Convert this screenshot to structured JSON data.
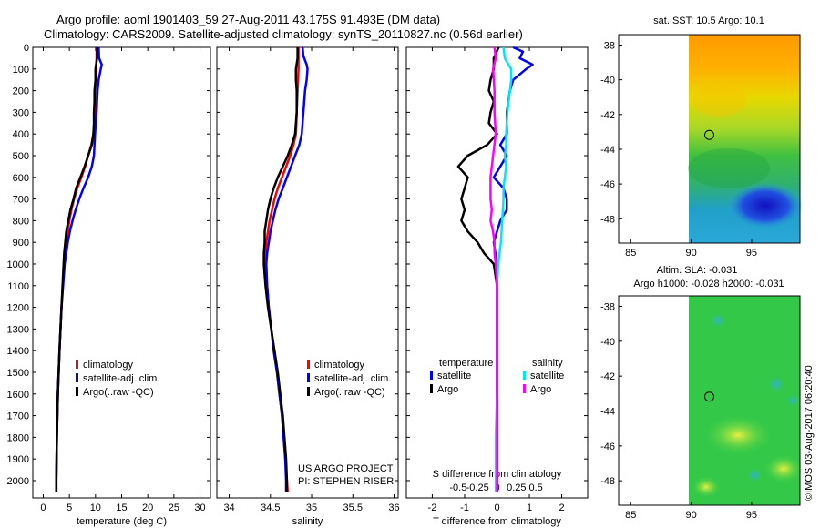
{
  "titles": {
    "line1": "Argo profile: aoml 1901403_59 27-Aug-2011 43.175S 91.493E (DM data)",
    "line2": "Climatology: CARS2009. Satellite-adjusted climatology: synTS_20110827.nc (0.56d earlier)"
  },
  "colors": {
    "climatology": "#ff0000",
    "satellite_adj": "#0000ff",
    "argo": "#000000",
    "sat_salinity": "#00e5ff",
    "argo_salinity": "#ff00ff"
  },
  "chart_data": [
    {
      "type": "line",
      "name": "temperature-profile",
      "xlabel": "temperature (deg C)",
      "ylabel": "",
      "xlim": [
        -2,
        32
      ],
      "ylim": [
        2080,
        0
      ],
      "xticks": [
        "0",
        "5",
        "10",
        "15",
        "20",
        "25",
        "30"
      ],
      "yticks": [
        "0",
        "100",
        "200",
        "300",
        "400",
        "500",
        "600",
        "700",
        "800",
        "900",
        "1000",
        "1100",
        "1200",
        "1300",
        "1400",
        "1500",
        "1600",
        "1700",
        "1800",
        "1900",
        "2000"
      ],
      "legend": [
        "climatology",
        "satellite-adj. clim.",
        "Argo(..raw -QC)"
      ],
      "series": [
        {
          "name": "climatology",
          "depth": [
            0,
            50,
            100,
            200,
            300,
            400,
            450,
            500,
            550,
            600,
            650,
            700,
            750,
            800,
            850,
            900,
            1000,
            1200,
            1400,
            1600,
            1800,
            2000,
            2050
          ],
          "values": [
            10.2,
            10.2,
            10.1,
            10.0,
            9.9,
            9.6,
            9.2,
            8.6,
            8.0,
            7.3,
            6.5,
            5.9,
            5.4,
            5.0,
            4.7,
            4.4,
            4.0,
            3.5,
            3.1,
            2.8,
            2.6,
            2.5,
            2.5
          ]
        },
        {
          "name": "satellite-adj. clim.",
          "depth": [
            0,
            50,
            80,
            100,
            150,
            200,
            300,
            400,
            450,
            500,
            550,
            600,
            650,
            700,
            750,
            800,
            850,
            900,
            1000,
            1200,
            1400,
            1600,
            1800,
            2000,
            2050
          ],
          "values": [
            10.6,
            10.7,
            11.2,
            11.0,
            10.6,
            10.4,
            10.2,
            9.9,
            9.8,
            9.7,
            9.3,
            8.6,
            7.7,
            6.9,
            6.2,
            5.6,
            5.1,
            4.7,
            4.1,
            3.5,
            3.1,
            2.8,
            2.6,
            2.5,
            2.5
          ]
        },
        {
          "name": "Argo(..raw -QC)",
          "depth": [
            0,
            50,
            100,
            150,
            200,
            250,
            300,
            350,
            400,
            450,
            500,
            550,
            600,
            650,
            700,
            750,
            800,
            850,
            900,
            950,
            1000,
            1200,
            1400,
            1600,
            1800,
            2000,
            2050
          ],
          "values": [
            10.3,
            10.3,
            10.0,
            10.0,
            9.8,
            9.8,
            9.7,
            9.7,
            9.6,
            9.3,
            8.6,
            7.9,
            7.1,
            6.3,
            5.8,
            5.2,
            4.8,
            4.4,
            4.2,
            4.0,
            3.9,
            3.5,
            3.1,
            2.8,
            2.6,
            2.5,
            2.5
          ]
        }
      ],
      "annotations": []
    },
    {
      "type": "line",
      "name": "salinity-profile",
      "xlabel": "salinity",
      "xlim": [
        33.85,
        36.05
      ],
      "ylim": [
        2080,
        0
      ],
      "xticks": [
        "34",
        "34.5",
        "35",
        "35.5",
        "36"
      ],
      "legend": [
        "climatology",
        "satellite-adj. clim.",
        "Argo(..raw -QC)"
      ],
      "series": [
        {
          "name": "climatology",
          "depth": [
            0,
            50,
            100,
            200,
            300,
            400,
            450,
            500,
            550,
            600,
            650,
            700,
            750,
            800,
            850,
            900,
            950,
            1000,
            1100,
            1200,
            1300,
            1400,
            1500,
            1600,
            1700,
            1800,
            1900,
            2000,
            2050
          ],
          "values": [
            34.84,
            34.84,
            34.84,
            34.83,
            34.82,
            34.81,
            34.78,
            34.74,
            34.69,
            34.64,
            34.59,
            34.55,
            34.52,
            34.49,
            34.47,
            34.45,
            34.44,
            34.44,
            34.46,
            34.48,
            34.51,
            34.54,
            34.58,
            34.61,
            34.64,
            34.66,
            34.68,
            34.7,
            34.71
          ]
        },
        {
          "name": "satellite-adj. clim.",
          "depth": [
            0,
            40,
            60,
            80,
            100,
            150,
            200,
            300,
            400,
            450,
            500,
            550,
            600,
            650,
            700,
            750,
            800,
            850,
            900,
            950,
            1000,
            1100,
            1200,
            1300,
            1400,
            1500,
            1600,
            1700,
            1800,
            1900,
            2000,
            2050
          ],
          "values": [
            34.89,
            34.9,
            34.92,
            34.94,
            34.95,
            34.94,
            34.92,
            34.9,
            34.88,
            34.85,
            34.8,
            34.75,
            34.7,
            34.65,
            34.6,
            34.56,
            34.53,
            34.5,
            34.48,
            34.46,
            34.45,
            34.46,
            34.48,
            34.51,
            34.54,
            34.58,
            34.61,
            34.64,
            34.66,
            34.68,
            34.69,
            34.69
          ]
        },
        {
          "name": "Argo(..raw -QC)",
          "depth": [
            0,
            50,
            100,
            150,
            200,
            250,
            300,
            350,
            400,
            450,
            500,
            550,
            600,
            650,
            700,
            750,
            800,
            850,
            900,
            950,
            1000,
            1100,
            1200,
            1300,
            1400,
            1500,
            1600,
            1700,
            1800,
            1900,
            2000,
            2050
          ],
          "values": [
            34.83,
            34.83,
            34.81,
            34.81,
            34.82,
            34.82,
            34.82,
            34.81,
            34.8,
            34.76,
            34.71,
            34.65,
            34.59,
            34.54,
            34.5,
            34.47,
            34.45,
            34.43,
            34.43,
            34.42,
            34.42,
            34.44,
            34.47,
            34.51,
            34.55,
            34.59,
            34.62,
            34.65,
            34.67,
            34.69,
            34.7,
            34.7
          ]
        }
      ],
      "annotations": [
        "US ARGO PROJECT",
        "PI: STEPHEN RISER"
      ]
    },
    {
      "type": "line",
      "name": "difference-profile",
      "xlabel": "T difference from climatology",
      "xlabel_top": "S difference from climatology",
      "xlim": [
        -2.8,
        2.8
      ],
      "ylim": [
        2080,
        0
      ],
      "xticks": [
        "-2",
        "-1",
        "0",
        "1",
        "2"
      ],
      "xticks_top": [
        "-0.5",
        "-0.25",
        "0",
        "0.25",
        "0.5"
      ],
      "legend_headers": [
        "temperature",
        "salinity"
      ],
      "legend": [
        "satellite",
        "Argo",
        "satellite",
        "Argo"
      ],
      "series": [
        {
          "name": "temperature satellite",
          "depth": [
            0,
            20,
            50,
            80,
            100,
            150,
            200,
            300,
            400,
            450,
            500,
            550,
            600,
            650,
            700,
            750,
            800,
            850,
            900,
            1000,
            1100,
            1200,
            1400,
            1600,
            1800,
            2000,
            2050
          ],
          "values": [
            0.5,
            0.8,
            0.7,
            1.1,
            0.9,
            0.5,
            0.4,
            0.3,
            0.3,
            0.1,
            0.3,
            0.1,
            -0.1,
            0.2,
            0.3,
            0.3,
            0.1,
            0.0,
            -0.1,
            0.0,
            0.0,
            0.0,
            0.0,
            0.0,
            0.0,
            0.0,
            0.0
          ]
        },
        {
          "name": "temperature Argo",
          "depth": [
            0,
            50,
            100,
            150,
            200,
            250,
            300,
            350,
            400,
            450,
            500,
            550,
            600,
            650,
            700,
            750,
            800,
            850,
            900,
            950,
            1000,
            1100,
            1200,
            1400,
            1600,
            1800,
            2000,
            2050
          ],
          "values": [
            0.05,
            -0.1,
            -0.1,
            -0.2,
            -0.25,
            -0.1,
            -0.2,
            -0.25,
            0.0,
            -0.3,
            -0.9,
            -1.2,
            -0.9,
            -1.0,
            -1.1,
            -1.0,
            -1.1,
            -0.9,
            -0.6,
            -0.4,
            -0.1,
            0.0,
            0.0,
            0.0,
            0.0,
            0.0,
            0.0,
            0.0
          ]
        },
        {
          "name": "salinity satellite",
          "depth": [
            0,
            50,
            100,
            150,
            200,
            300,
            400,
            450,
            500,
            550,
            600,
            650,
            700,
            800,
            900,
            1000,
            1100,
            1200,
            1400,
            1600,
            1800,
            2000,
            2050
          ],
          "values": [
            0.05,
            0.06,
            0.11,
            0.11,
            0.1,
            0.08,
            0.07,
            0.07,
            0.06,
            0.07,
            0.06,
            0.05,
            0.05,
            0.04,
            0.03,
            0.01,
            0.0,
            0.0,
            0.0,
            0.0,
            -0.01,
            -0.01,
            -0.01
          ]
        },
        {
          "name": "salinity Argo",
          "depth": [
            0,
            50,
            100,
            200,
            300,
            400,
            500,
            600,
            700,
            750,
            800,
            850,
            900,
            950,
            1000,
            1100,
            1200,
            1400,
            1600,
            1800,
            2000,
            2050
          ],
          "values": [
            -0.02,
            -0.01,
            -0.03,
            -0.02,
            -0.02,
            -0.01,
            -0.03,
            -0.05,
            -0.05,
            -0.04,
            -0.05,
            -0.03,
            -0.02,
            -0.02,
            -0.01,
            0.0,
            0.0,
            0.0,
            0.0,
            0.0,
            0.0,
            0.0
          ]
        }
      ]
    },
    {
      "type": "heatmap",
      "name": "sst-map",
      "title": "sat. SST: 10.5 Argo: 10.1",
      "xticks": [
        "85",
        "90",
        "95"
      ],
      "yticks": [
        "-38",
        "-40",
        "-42",
        "-44",
        "-46",
        "-48"
      ],
      "xlim": [
        84,
        99
      ],
      "ylim": [
        -49.4,
        -37.4
      ],
      "marker": {
        "lon": 91.5,
        "lat": -43.175
      }
    },
    {
      "type": "heatmap",
      "name": "sla-map",
      "title_line1": "Altim. SLA: -0.031",
      "title_line2": "Argo h1000: -0.028 h2000: -0.031",
      "xticks": [
        "85",
        "90",
        "95"
      ],
      "yticks": [
        "-38",
        "-40",
        "-42",
        "-44",
        "-46",
        "-48"
      ],
      "xlim": [
        84,
        99
      ],
      "ylim": [
        -49.4,
        -37.4
      ],
      "marker": {
        "lon": 91.5,
        "lat": -43.175
      }
    }
  ],
  "footer": {
    "stamp": "©IMOS 03-Aug-2017 06:20:40"
  }
}
